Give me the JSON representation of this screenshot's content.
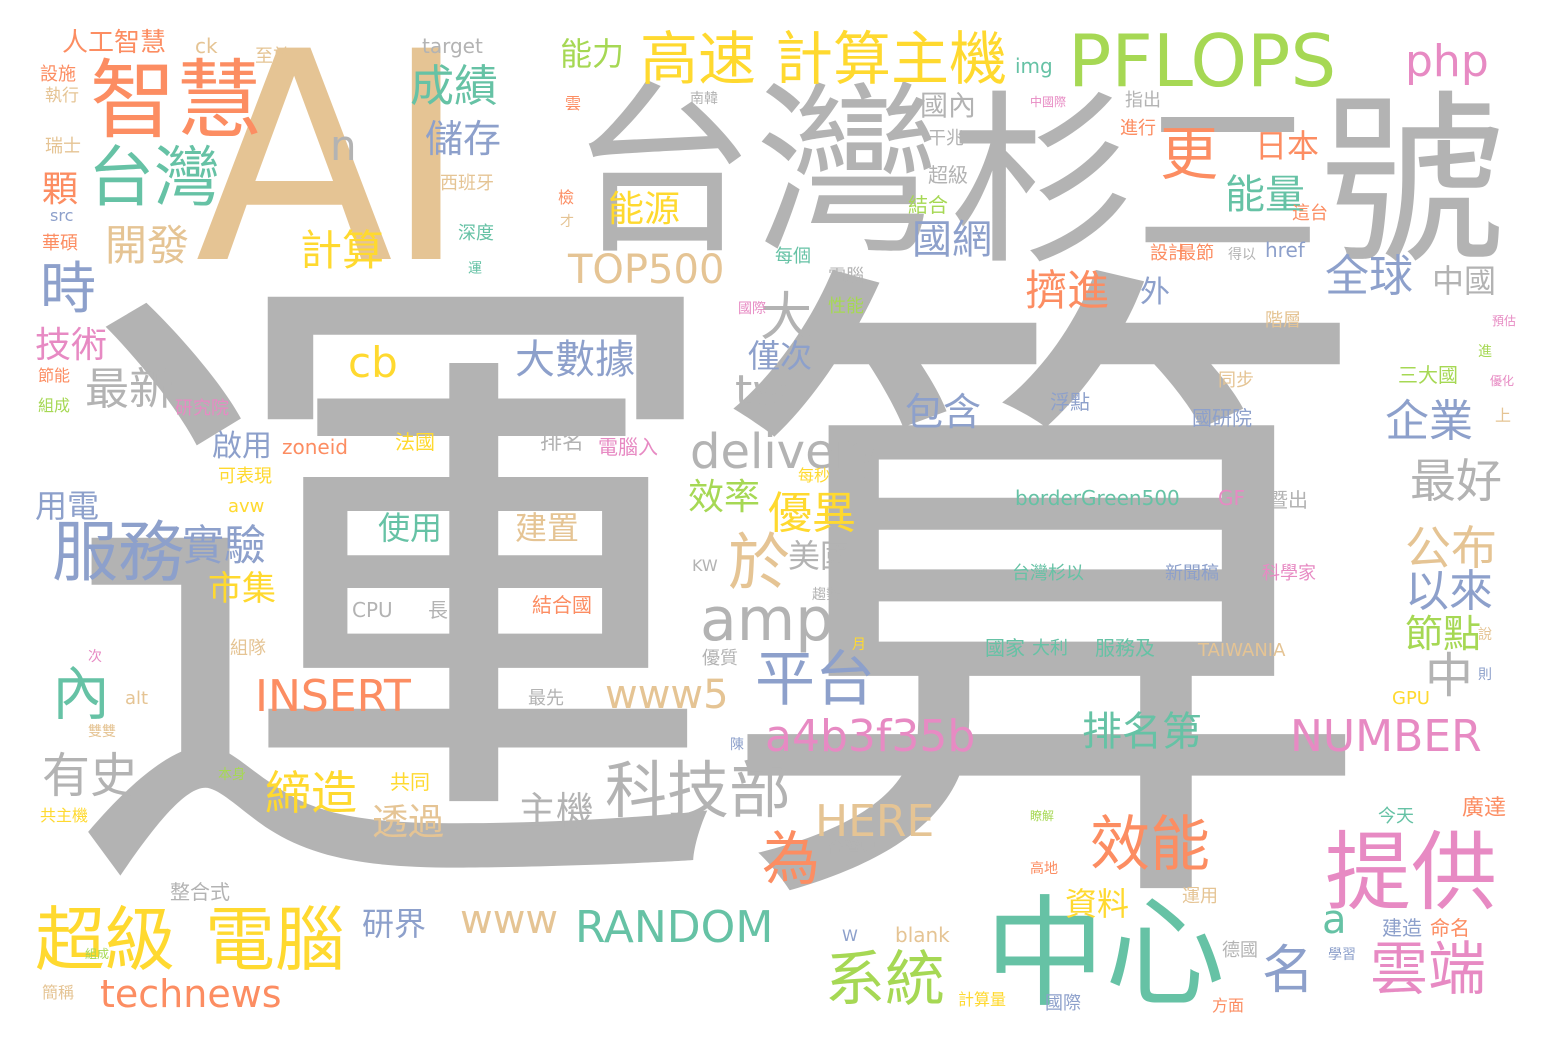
{
  "palette": {
    "gray": "#b3b3b3",
    "tan": "#e5c494",
    "green": "#66c2a5",
    "orange": "#fc8d62",
    "blue": "#8da0cb",
    "pink": "#e78ac3",
    "lime": "#a6d854",
    "yellow": "#ffd92f"
  },
  "words": [
    {
      "t": "運算",
      "c": "gray"
    },
    {
      "t": "AI",
      "c": "tan"
    },
    {
      "t": "台灣",
      "c": "gray"
    },
    {
      "t": "杉二號",
      "c": "gray"
    },
    {
      "t": "PFLOPS",
      "c": "lime"
    },
    {
      "t": "智慧",
      "c": "orange"
    },
    {
      "t": "台灣",
      "c": "green"
    },
    {
      "t": "中心",
      "c": "green"
    },
    {
      "t": "提供",
      "c": "pink"
    },
    {
      "t": "高速",
      "c": "yellow"
    },
    {
      "t": "計算主機",
      "c": "yellow"
    },
    {
      "t": "超級",
      "c": "yellow"
    },
    {
      "t": "電腦",
      "c": "yellow"
    },
    {
      "t": "服務",
      "c": "blue"
    },
    {
      "t": "科技部",
      "c": "gray"
    },
    {
      "t": "效能",
      "c": "orange"
    },
    {
      "t": "雲端",
      "c": "pink"
    },
    {
      "t": "系統",
      "c": "lime"
    },
    {
      "t": "amp",
      "c": "gray"
    },
    {
      "t": "平台",
      "c": "blue"
    },
    {
      "t": "delivery",
      "c": "gray"
    },
    {
      "t": "RANDOM",
      "c": "green"
    },
    {
      "t": "NUMBER",
      "c": "pink"
    },
    {
      "t": "INSERT",
      "c": "orange"
    },
    {
      "t": "a4b3f35b",
      "c": "pink"
    },
    {
      "t": "www5",
      "c": "tan"
    },
    {
      "t": "technews",
      "c": "orange"
    },
    {
      "t": "TOP500",
      "c": "tan"
    },
    {
      "t": "HERE",
      "c": "tan"
    },
    {
      "t": "www",
      "c": "tan"
    },
    {
      "t": "php",
      "c": "pink"
    },
    {
      "t": "更",
      "c": "orange"
    },
    {
      "t": "能量",
      "c": "green"
    },
    {
      "t": "日本",
      "c": "orange"
    },
    {
      "t": "國網",
      "c": "blue"
    },
    {
      "t": "國內",
      "c": "gray"
    },
    {
      "t": "擠進",
      "c": "orange"
    },
    {
      "t": "全球",
      "c": "blue"
    },
    {
      "t": "中國",
      "c": "gray"
    },
    {
      "t": "外",
      "c": "blue"
    },
    {
      "t": "能力",
      "c": "lime"
    },
    {
      "t": "成績",
      "c": "green"
    },
    {
      "t": "儲存",
      "c": "blue"
    },
    {
      "t": "n",
      "c": "gray"
    },
    {
      "t": "顆",
      "c": "orange"
    },
    {
      "t": "開發",
      "c": "tan"
    },
    {
      "t": "時",
      "c": "blue"
    },
    {
      "t": "計算",
      "c": "yellow"
    },
    {
      "t": "能源",
      "c": "yellow"
    },
    {
      "t": "技術",
      "c": "pink"
    },
    {
      "t": "最新",
      "c": "gray"
    },
    {
      "t": "大",
      "c": "gray"
    },
    {
      "t": "大數據",
      "c": "blue"
    },
    {
      "t": "cb",
      "c": "yellow"
    },
    {
      "t": "僅次",
      "c": "blue"
    },
    {
      "t": "tw",
      "c": "gray"
    },
    {
      "t": "包含",
      "c": "blue"
    },
    {
      "t": "企業",
      "c": "blue"
    },
    {
      "t": "最好",
      "c": "gray"
    },
    {
      "t": "公布",
      "c": "tan"
    },
    {
      "t": "以來",
      "c": "blue"
    },
    {
      "t": "節點",
      "c": "lime"
    },
    {
      "t": "中",
      "c": "gray"
    },
    {
      "t": "實驗",
      "c": "blue"
    },
    {
      "t": "市集",
      "c": "yellow"
    },
    {
      "t": "啟用",
      "c": "blue"
    },
    {
      "t": "效率",
      "c": "lime"
    },
    {
      "t": "優異",
      "c": "yellow"
    },
    {
      "t": "於",
      "c": "tan"
    },
    {
      "t": "美國",
      "c": "gray"
    },
    {
      "t": "內",
      "c": "green"
    },
    {
      "t": "有史",
      "c": "gray"
    },
    {
      "t": "締造",
      "c": "yellow"
    },
    {
      "t": "透過",
      "c": "tan"
    },
    {
      "t": "主機",
      "c": "gray"
    },
    {
      "t": "為",
      "c": "orange"
    },
    {
      "t": "排名第",
      "c": "green"
    },
    {
      "t": "名",
      "c": "blue"
    },
    {
      "t": "a",
      "c": "green"
    },
    {
      "t": "資料",
      "c": "yellow"
    },
    {
      "t": "研界",
      "c": "blue"
    },
    {
      "t": "用電",
      "c": "blue"
    },
    {
      "t": "使用",
      "c": "green"
    },
    {
      "t": "建置",
      "c": "tan"
    },
    {
      "t": "人工智慧",
      "c": "orange"
    },
    {
      "t": "ck",
      "c": "tan"
    },
    {
      "t": "至於",
      "c": "tan"
    },
    {
      "t": "target",
      "c": "gray"
    },
    {
      "t": "img",
      "c": "green"
    },
    {
      "t": "設施",
      "c": "orange"
    },
    {
      "t": "執行",
      "c": "tan"
    },
    {
      "t": "瑞士",
      "c": "tan"
    },
    {
      "t": "華碩",
      "c": "orange"
    },
    {
      "t": "src",
      "c": "blue"
    },
    {
      "t": "西班牙",
      "c": "tan"
    },
    {
      "t": "深度",
      "c": "green"
    },
    {
      "t": "超級",
      "c": "gray"
    },
    {
      "t": "結合",
      "c": "lime"
    },
    {
      "t": "干兆",
      "c": "gray"
    },
    {
      "t": "每個",
      "c": "green"
    },
    {
      "t": "電腦",
      "c": "gray"
    },
    {
      "t": "性能",
      "c": "lime"
    },
    {
      "t": "國際",
      "c": "pink"
    },
    {
      "t": "設計",
      "c": "orange"
    },
    {
      "t": "最節",
      "c": "orange"
    },
    {
      "t": "得以",
      "c": "gray"
    },
    {
      "t": "href",
      "c": "blue"
    },
    {
      "t": "階層",
      "c": "tan"
    },
    {
      "t": "同步",
      "c": "tan"
    },
    {
      "t": "三大國",
      "c": "lime"
    },
    {
      "t": "國研院",
      "c": "blue"
    },
    {
      "t": "浮點",
      "c": "blue"
    },
    {
      "t": "zoneid",
      "c": "orange"
    },
    {
      "t": "法國",
      "c": "yellow"
    },
    {
      "t": "排名",
      "c": "gray"
    },
    {
      "t": "電腦入",
      "c": "pink"
    },
    {
      "t": "可表現",
      "c": "yellow"
    },
    {
      "t": "avw",
      "c": "yellow"
    },
    {
      "t": "borderGreen500",
      "c": "green"
    },
    {
      "t": "GF",
      "c": "pink"
    },
    {
      "t": "暨出",
      "c": "gray"
    },
    {
      "t": "台灣杉以",
      "c": "green"
    },
    {
      "t": "新聞稿",
      "c": "blue"
    },
    {
      "t": "科學家",
      "c": "pink"
    },
    {
      "t": "CPU",
      "c": "gray"
    },
    {
      "t": "長",
      "c": "gray"
    },
    {
      "t": "結合國",
      "c": "orange"
    },
    {
      "t": "KW",
      "c": "gray"
    },
    {
      "t": "趨勢",
      "c": "gray"
    },
    {
      "t": "國家",
      "c": "green"
    },
    {
      "t": "大利",
      "c": "green"
    },
    {
      "t": "服務及",
      "c": "green"
    },
    {
      "t": "TAIWANIA",
      "c": "tan"
    },
    {
      "t": "組隊",
      "c": "tan"
    },
    {
      "t": "優質",
      "c": "gray"
    },
    {
      "t": "alt",
      "c": "tan"
    },
    {
      "t": "GPU",
      "c": "yellow"
    },
    {
      "t": "最先",
      "c": "gray"
    },
    {
      "t": "共同",
      "c": "yellow"
    },
    {
      "t": "本身",
      "c": "lime"
    },
    {
      "t": "共主機",
      "c": "yellow"
    },
    {
      "t": "今天",
      "c": "green"
    },
    {
      "t": "廣達",
      "c": "orange"
    },
    {
      "t": "台灣史",
      "c": "gray"
    },
    {
      "t": "整合式",
      "c": "gray"
    },
    {
      "t": "建造",
      "c": "blue"
    },
    {
      "t": "命名",
      "c": "orange"
    },
    {
      "t": "運用",
      "c": "tan"
    },
    {
      "t": "blank",
      "c": "tan"
    },
    {
      "t": "W",
      "c": "blue"
    },
    {
      "t": "德國",
      "c": "gray"
    },
    {
      "t": "學習",
      "c": "blue"
    },
    {
      "t": "計算量",
      "c": "yellow"
    },
    {
      "t": "國際",
      "c": "blue"
    },
    {
      "t": "方面",
      "c": "orange"
    },
    {
      "t": "簡稱",
      "c": "tan"
    },
    {
      "t": "高地",
      "c": "orange"
    },
    {
      "t": "瞭解",
      "c": "lime"
    },
    {
      "t": "研究院",
      "c": "pink"
    },
    {
      "t": "節能",
      "c": "orange"
    },
    {
      "t": "組成",
      "c": "lime"
    },
    {
      "t": "指出",
      "c": "gray"
    },
    {
      "t": "進行",
      "c": "orange"
    },
    {
      "t": "中國際",
      "c": "pink"
    },
    {
      "t": "南韓",
      "c": "gray"
    },
    {
      "t": "雲",
      "c": "orange"
    },
    {
      "t": "這台",
      "c": "orange"
    },
    {
      "t": "檢",
      "c": "orange"
    },
    {
      "t": "才",
      "c": "tan"
    },
    {
      "t": "運",
      "c": "green"
    },
    {
      "t": "上",
      "c": "tan"
    },
    {
      "t": "進",
      "c": "lime"
    },
    {
      "t": "優化",
      "c": "pink"
    },
    {
      "t": "預估",
      "c": "pink"
    },
    {
      "t": "說",
      "c": "tan"
    },
    {
      "t": "則",
      "c": "blue"
    },
    {
      "t": "次",
      "c": "pink"
    },
    {
      "t": "月",
      "c": "yellow"
    },
    {
      "t": "陳",
      "c": "blue"
    },
    {
      "t": "雙雙",
      "c": "tan"
    },
    {
      "t": "每秒",
      "c": "yellow"
    },
    {
      "t": "組成",
      "c": "lime"
    }
  ]
}
